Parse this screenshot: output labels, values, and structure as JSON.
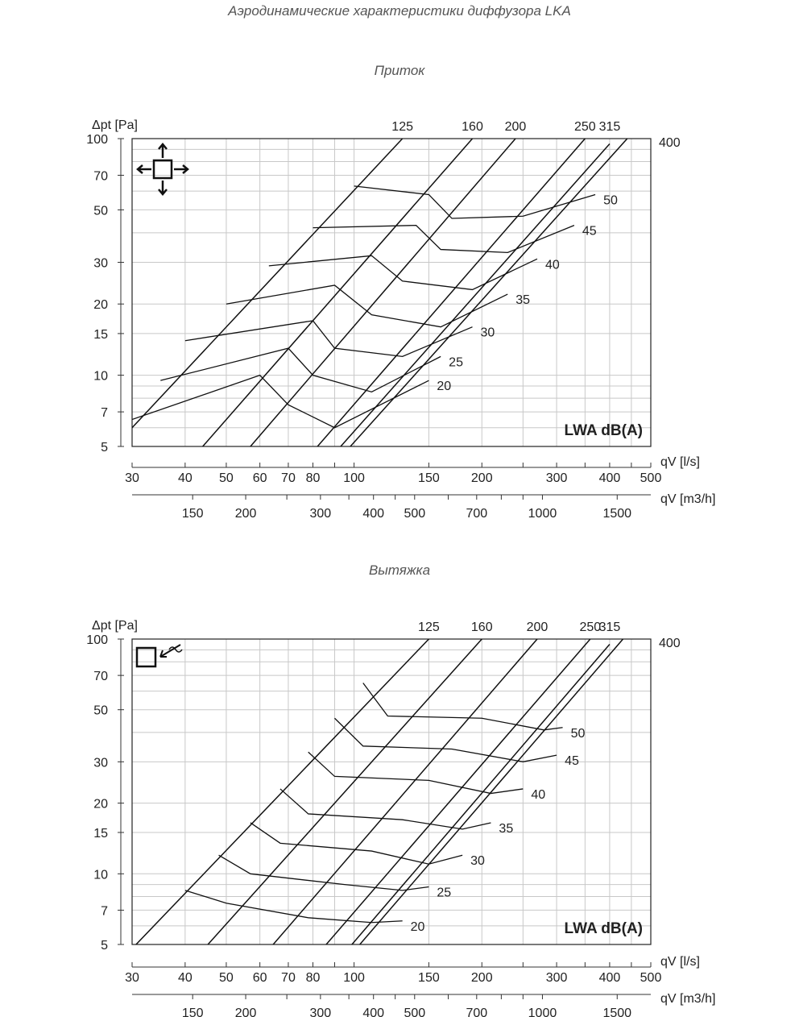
{
  "document_title": "Аэродинамические характеристики диффузора LKA",
  "chart_data": [
    {
      "type": "line",
      "title": "Приток",
      "ylabel": "Δpt [Pa]",
      "xlabel": "qV [l/s]",
      "x2label": "qV [m3/h]",
      "legend_label": "LWA dB(A)",
      "x_scale": "log",
      "y_scale": "log",
      "xlim": [
        30,
        500
      ],
      "ylim": [
        5,
        100
      ],
      "x_ticks": [
        30,
        40,
        50,
        60,
        70,
        80,
        100,
        150,
        200,
        300,
        400,
        500
      ],
      "x2_ticks": [
        150,
        200,
        300,
        400,
        500,
        700,
        1000,
        1500
      ],
      "y_ticks": [
        5,
        7,
        10,
        15,
        20,
        30,
        50,
        70,
        100
      ],
      "icon": "supply-four-way-arrows-icon",
      "diameters": [
        {
          "label": "125",
          "points": [
            [
              30,
              6
            ],
            [
              130,
              100
            ]
          ]
        },
        {
          "label": "160",
          "points": [
            [
              44,
              5
            ],
            [
              190,
              100
            ]
          ]
        },
        {
          "label": "200",
          "points": [
            [
              57,
              5
            ],
            [
              240,
              100
            ]
          ]
        },
        {
          "label": "250",
          "points": [
            [
              82,
              5
            ],
            [
              350,
              100
            ]
          ]
        },
        {
          "label": "315",
          "points": [
            [
              93,
              5
            ],
            [
              400,
              95
            ]
          ]
        },
        {
          "label": "400",
          "points": [
            [
              98,
              5
            ],
            [
              440,
              100
            ]
          ]
        }
      ],
      "sound_levels": [
        {
          "label": "50",
          "points": [
            [
              100,
              63
            ],
            [
              150,
              58
            ],
            [
              170,
              46
            ],
            [
              250,
              47
            ],
            [
              370,
              58
            ]
          ]
        },
        {
          "label": "45",
          "points": [
            [
              80,
              42
            ],
            [
              140,
              43
            ],
            [
              160,
              34
            ],
            [
              230,
              33
            ],
            [
              330,
              43
            ]
          ]
        },
        {
          "label": "40",
          "points": [
            [
              63,
              29
            ],
            [
              110,
              32
            ],
            [
              130,
              25
            ],
            [
              190,
              23
            ],
            [
              270,
              31
            ]
          ]
        },
        {
          "label": "35",
          "points": [
            [
              50,
              20
            ],
            [
              90,
              24
            ],
            [
              110,
              18
            ],
            [
              160,
              16
            ],
            [
              230,
              22
            ]
          ]
        },
        {
          "label": "30",
          "points": [
            [
              40,
              14
            ],
            [
              80,
              17
            ],
            [
              90,
              13
            ],
            [
              130,
              12
            ],
            [
              190,
              16
            ]
          ]
        },
        {
          "label": "25",
          "points": [
            [
              35,
              9.5
            ],
            [
              70,
              13
            ],
            [
              80,
              10
            ],
            [
              110,
              8.5
            ],
            [
              160,
              12
            ]
          ]
        },
        {
          "label": "20",
          "points": [
            [
              30,
              6.5
            ],
            [
              60,
              10
            ],
            [
              70,
              7.5
            ],
            [
              90,
              6
            ],
            [
              150,
              9.5
            ]
          ]
        }
      ]
    },
    {
      "type": "line",
      "title": "Вытяжка",
      "ylabel": "Δpt [Pa]",
      "xlabel": "qV [l/s]",
      "x2label": "qV [m3/h]",
      "legend_label": "LWA dB(A)",
      "x_scale": "log",
      "y_scale": "log",
      "xlim": [
        30,
        500
      ],
      "ylim": [
        5,
        100
      ],
      "x_ticks": [
        30,
        40,
        50,
        60,
        70,
        80,
        100,
        150,
        200,
        300,
        400,
        500
      ],
      "x2_ticks": [
        150,
        200,
        300,
        400,
        500,
        700,
        1000,
        1500
      ],
      "y_ticks": [
        5,
        7,
        10,
        15,
        20,
        30,
        50,
        70,
        100
      ],
      "icon": "exhaust-square-arrow-icon",
      "diameters": [
        {
          "label": "125",
          "points": [
            [
              30,
              4.8
            ],
            [
              150,
              100
            ]
          ]
        },
        {
          "label": "160",
          "points": [
            [
              42,
              4.3
            ],
            [
              200,
              100
            ]
          ]
        },
        {
          "label": "200",
          "points": [
            [
              60,
              4.3
            ],
            [
              270,
              100
            ]
          ]
        },
        {
          "label": "250",
          "points": [
            [
              80,
              4.3
            ],
            [
              360,
              100
            ]
          ]
        },
        {
          "label": "315",
          "points": [
            [
              92,
              4.3
            ],
            [
              400,
              95
            ]
          ]
        },
        {
          "label": "400",
          "points": [
            [
              96,
              4.3
            ],
            [
              430,
              100
            ]
          ]
        }
      ],
      "sound_levels": [
        {
          "label": "50",
          "points": [
            [
              105,
              65
            ],
            [
              120,
              47
            ],
            [
              200,
              46
            ],
            [
              280,
              41
            ],
            [
              310,
              42
            ]
          ]
        },
        {
          "label": "45",
          "points": [
            [
              90,
              46
            ],
            [
              105,
              35
            ],
            [
              170,
              34
            ],
            [
              250,
              30
            ],
            [
              300,
              32
            ]
          ]
        },
        {
          "label": "40",
          "points": [
            [
              78,
              33
            ],
            [
              90,
              26
            ],
            [
              150,
              25
            ],
            [
              210,
              22
            ],
            [
              250,
              23
            ]
          ]
        },
        {
          "label": "35",
          "points": [
            [
              67,
              23
            ],
            [
              78,
              18
            ],
            [
              130,
              17
            ],
            [
              180,
              15.5
            ],
            [
              210,
              16.5
            ]
          ]
        },
        {
          "label": "30",
          "points": [
            [
              57,
              16.5
            ],
            [
              67,
              13.5
            ],
            [
              110,
              12.5
            ],
            [
              150,
              11
            ],
            [
              180,
              12
            ]
          ]
        },
        {
          "label": "25",
          "points": [
            [
              48,
              12
            ],
            [
              57,
              10
            ],
            [
              95,
              9
            ],
            [
              130,
              8.5
            ],
            [
              150,
              8.8
            ]
          ]
        },
        {
          "label": "20",
          "points": [
            [
              40,
              8.5
            ],
            [
              50,
              7.5
            ],
            [
              78,
              6.5
            ],
            [
              110,
              6.2
            ],
            [
              130,
              6.3
            ]
          ]
        }
      ]
    }
  ]
}
